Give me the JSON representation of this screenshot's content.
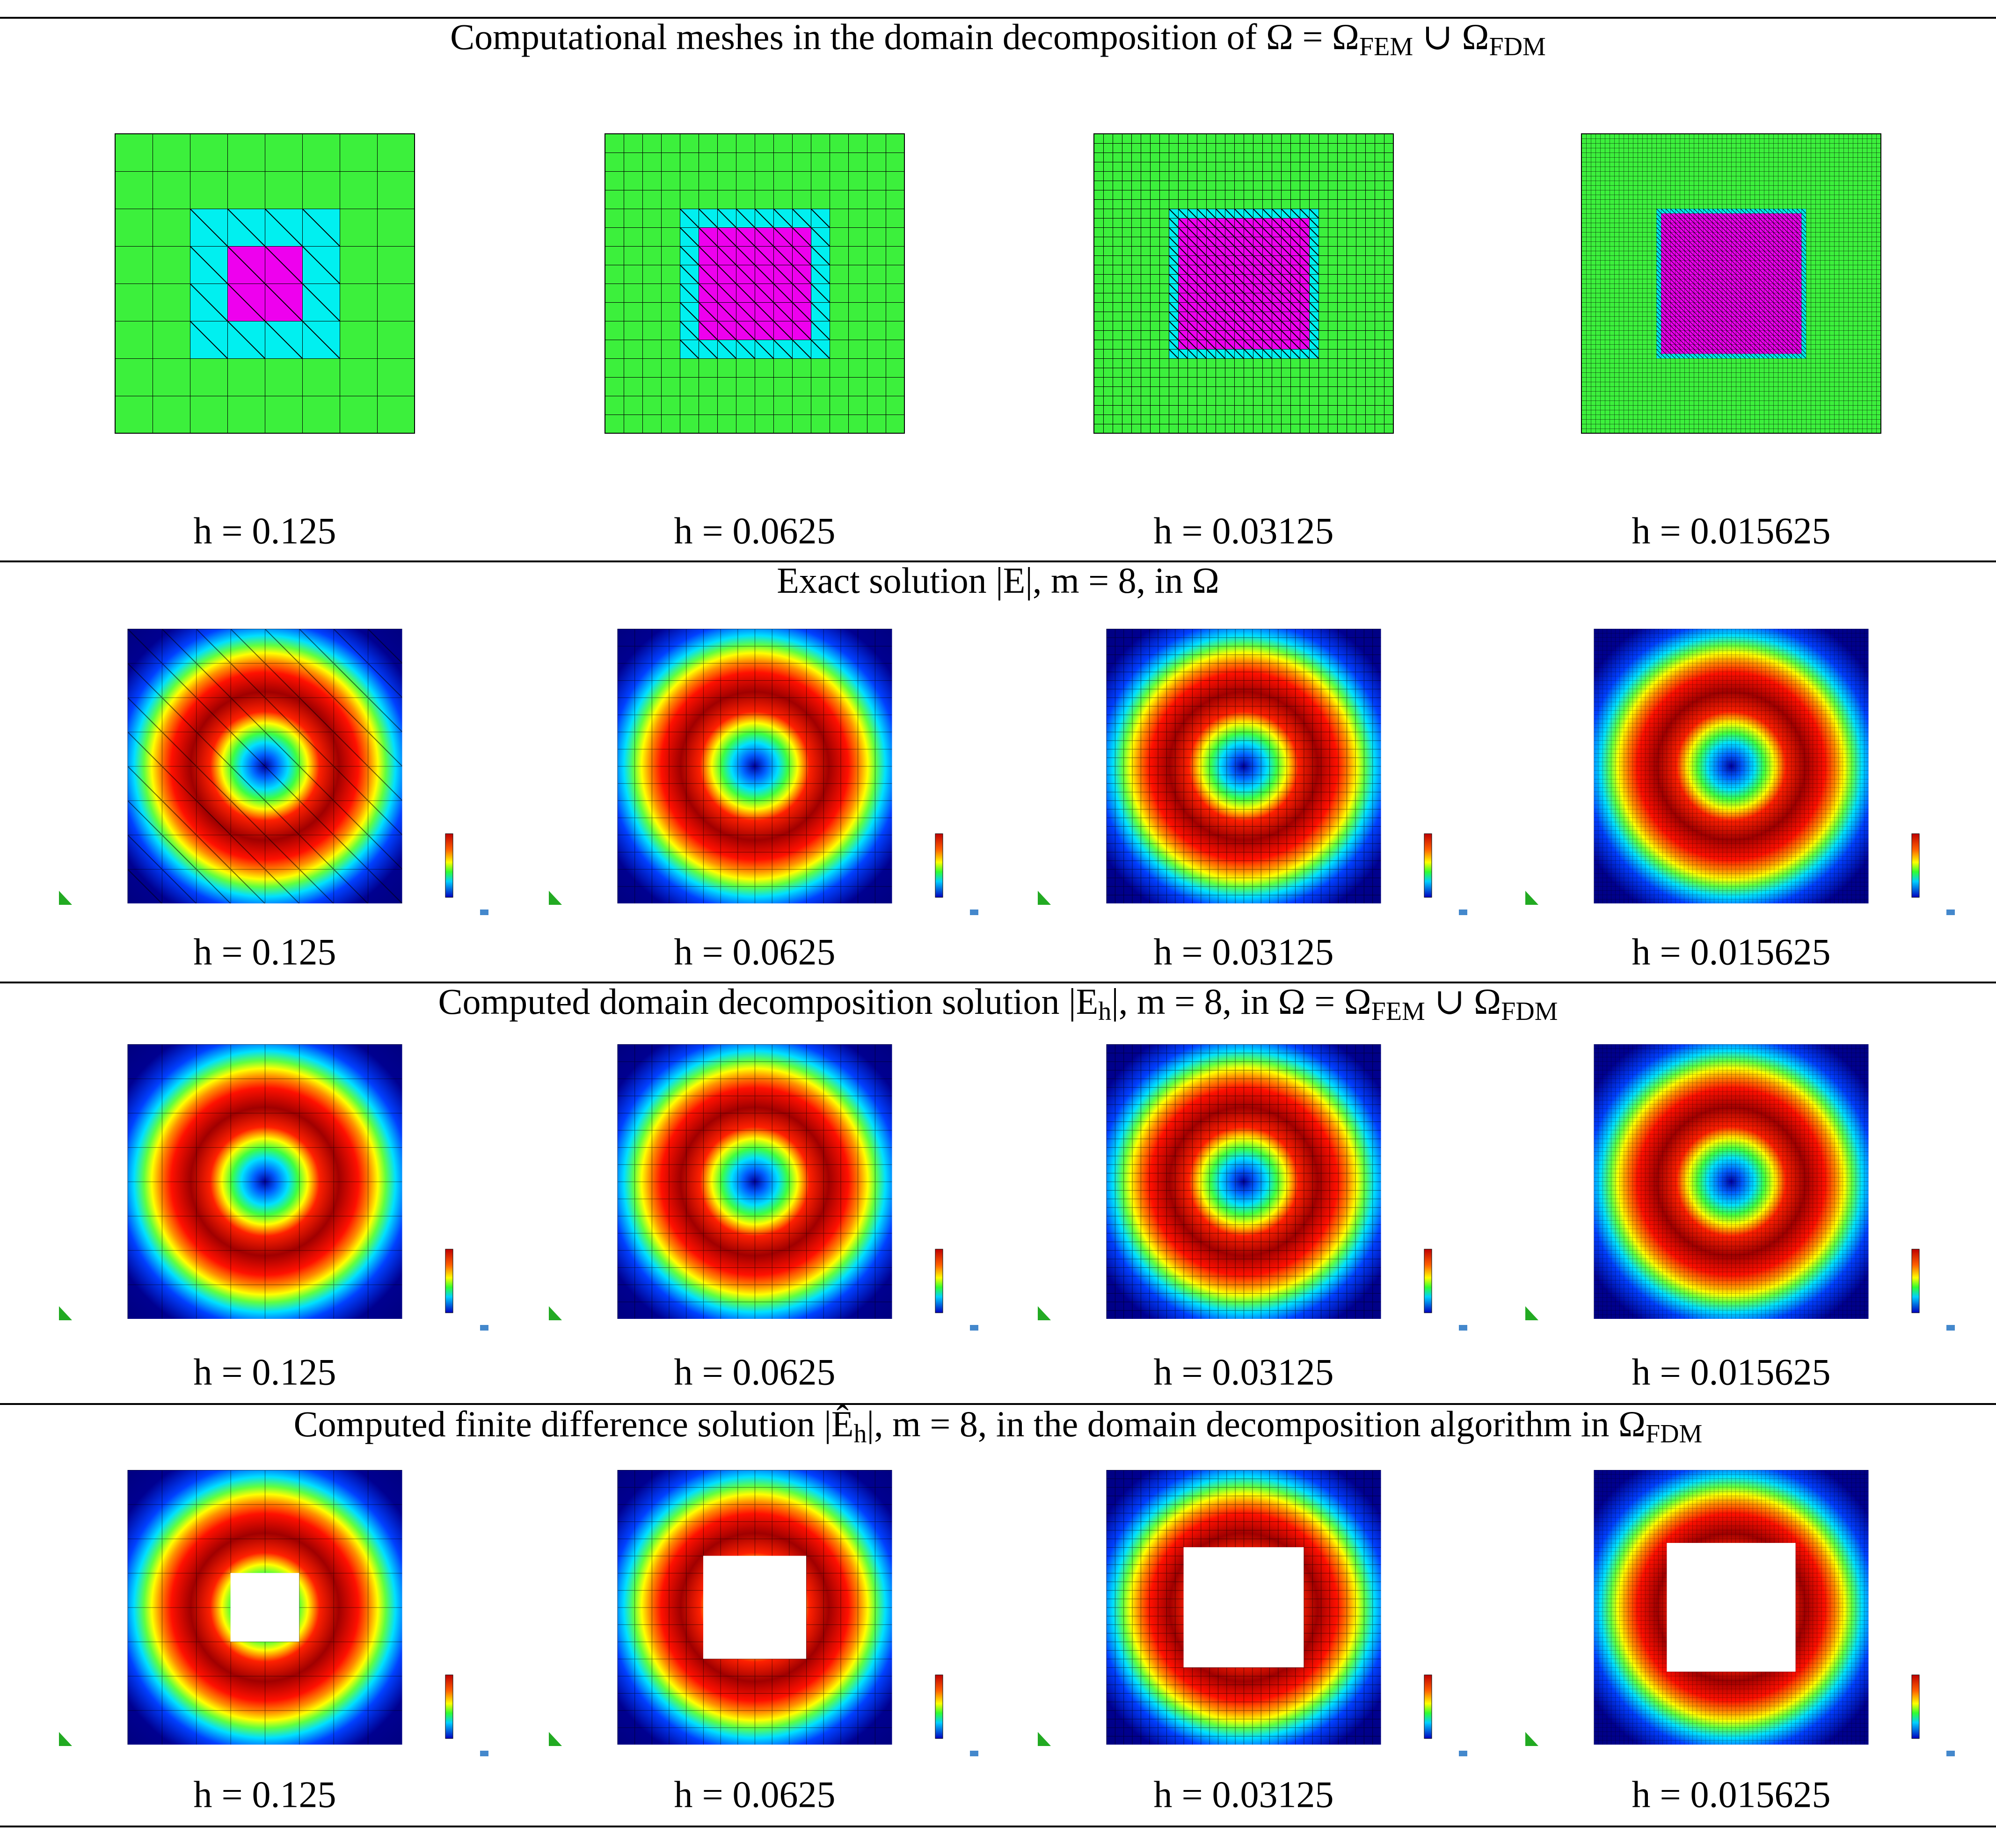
{
  "sections": [
    {
      "title": [
        "Computational meshes in the domain decomposition of Ω = Ω",
        "FEM",
        " ∪ Ω",
        "FDM"
      ],
      "captions": [
        "h = 0.125",
        "h = 0.0625",
        "h = 0.03125",
        "h = 0.015625"
      ]
    },
    {
      "title": [
        "Exact solution |E|, m = 8, in Ω"
      ],
      "captions": [
        "h = 0.125",
        "h = 0.0625",
        "h = 0.03125",
        "h = 0.015625"
      ]
    },
    {
      "title": [
        "Computed domain decomposition solution |E",
        "h",
        "|, m = 8, in Ω = Ω",
        "FEM",
        " ∪ Ω",
        "FDM"
      ],
      "captions": [
        "h = 0.125",
        "h = 0.0625",
        "h = 0.03125",
        "h = 0.015625"
      ]
    },
    {
      "title": [
        "Computed finite difference solution |Ê",
        "h",
        "|, m = 8, in the domain decomposition algorithm in Ω",
        "FDM"
      ],
      "captions": [
        "h = 0.125",
        "h = 0.0625",
        "h = 0.03125",
        "h = 0.015625"
      ]
    }
  ]
}
